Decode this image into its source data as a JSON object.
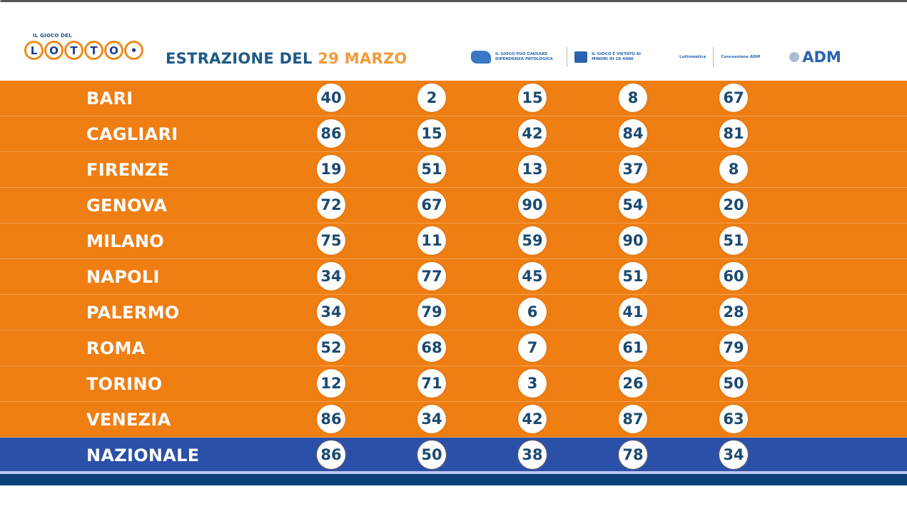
{
  "header": {
    "logo_small_text": "IL GIOCO DEL",
    "logo_letters": [
      "L",
      "O",
      "T",
      "T",
      "O",
      "•"
    ],
    "title_prefix": "ESTRAZIONE DEL",
    "title_date": "29 MARZO",
    "badge1": "IL GIOCO PUÒ CAUSARE DIPENDENZA PATOLOGICA",
    "badge2": "IL GIOCO È VIETATO AI MINORI DI 18 ANNI",
    "badge3a": "Lottomatica",
    "badge3b": "Concessione ADM",
    "adm": "ADM"
  },
  "colors": {
    "row_orange": "#ef7e13",
    "nazionale_blue": "#2b50a8",
    "number_text": "#1b4a72",
    "title_blue": "#1e5a86",
    "date_orange": "#f29b3b"
  },
  "rows": [
    {
      "name": "BARI",
      "numbers": [
        "40",
        "2",
        "15",
        "8",
        "67"
      ]
    },
    {
      "name": "CAGLIARI",
      "numbers": [
        "86",
        "15",
        "42",
        "84",
        "81"
      ]
    },
    {
      "name": "FIRENZE",
      "numbers": [
        "19",
        "51",
        "13",
        "37",
        "8"
      ]
    },
    {
      "name": "GENOVA",
      "numbers": [
        "72",
        "67",
        "90",
        "54",
        "20"
      ]
    },
    {
      "name": "MILANO",
      "numbers": [
        "75",
        "11",
        "59",
        "90",
        "51"
      ]
    },
    {
      "name": "NAPOLI",
      "numbers": [
        "34",
        "77",
        "45",
        "51",
        "60"
      ]
    },
    {
      "name": "PALERMO",
      "numbers": [
        "34",
        "79",
        "6",
        "41",
        "28"
      ]
    },
    {
      "name": "ROMA",
      "numbers": [
        "52",
        "68",
        "7",
        "61",
        "79"
      ]
    },
    {
      "name": "TORINO",
      "numbers": [
        "12",
        "71",
        "3",
        "26",
        "50"
      ]
    },
    {
      "name": "VENEZIA",
      "numbers": [
        "86",
        "34",
        "42",
        "87",
        "63"
      ]
    },
    {
      "name": "NAZIONALE",
      "numbers": [
        "86",
        "50",
        "38",
        "78",
        "34"
      ]
    }
  ]
}
